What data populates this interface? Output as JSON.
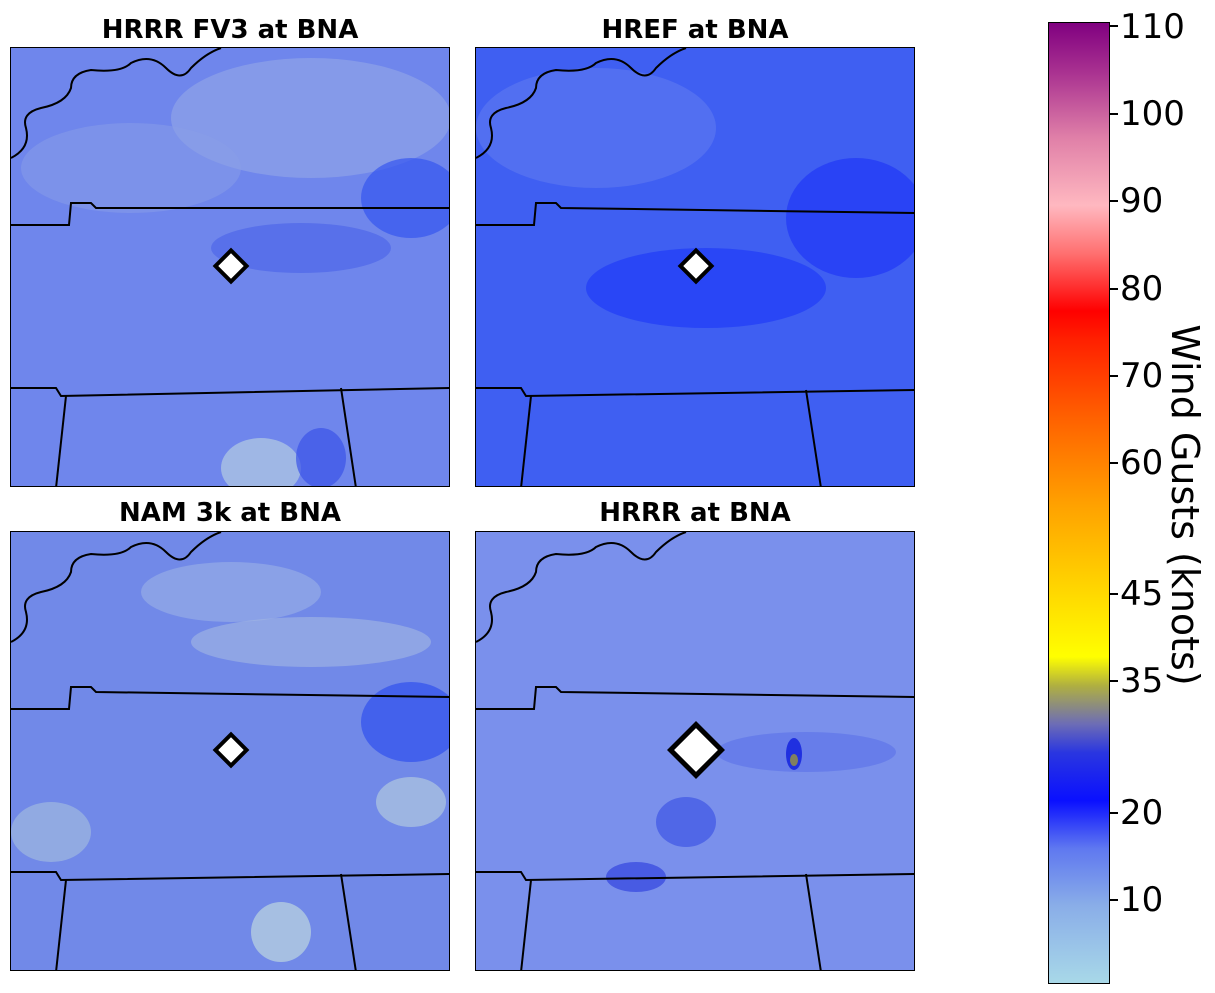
{
  "panels": [
    {
      "title": "HRRR FV3 at BNA",
      "base": "#6d84ec",
      "marker": "small"
    },
    {
      "title": "HREF at BNA",
      "base": "#3f5ff0",
      "marker": "small"
    },
    {
      "title": "NAM 3k at BNA",
      "base": "#7189e8",
      "marker": "small"
    },
    {
      "title": "HRRR at BNA",
      "base": "#7a90ec",
      "marker": "large"
    }
  ],
  "colorbar": {
    "label": "Wind Gusts (knots)",
    "ticks": [
      "110",
      "100",
      "90",
      "80",
      "70",
      "60",
      "45",
      "35",
      "20",
      "10"
    ]
  }
}
